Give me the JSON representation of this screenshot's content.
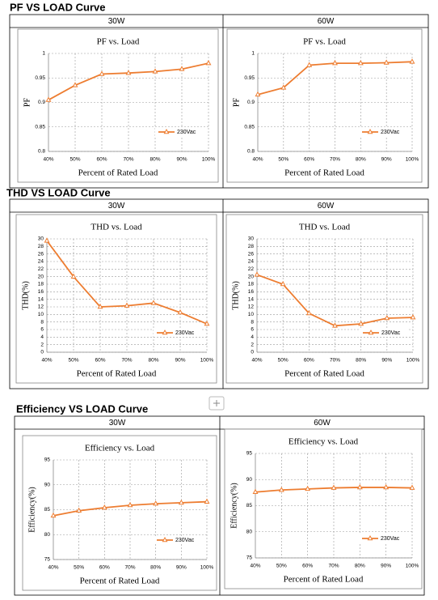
{
  "sections": [
    {
      "heading": "PF VS LOAD Curve",
      "columns": [
        "30W",
        "60W"
      ]
    },
    {
      "heading": "THD VS LOAD Curve",
      "columns": [
        "30W",
        "60W"
      ]
    },
    {
      "heading": "Efficiency VS LOAD Curve",
      "columns": [
        "30W",
        "60W"
      ]
    }
  ],
  "chart_data": [
    {
      "type": "line",
      "title": "PF vs. Load",
      "x_label": "Percent of Rated Load",
      "y_label": "PF",
      "categories": [
        "40%",
        "50%",
        "60%",
        "70%",
        "80%",
        "90%",
        "100%"
      ],
      "series": [
        {
          "name": "230Vac",
          "color": "#ed7d31",
          "values": [
            0.905,
            0.935,
            0.958,
            0.96,
            0.963,
            0.968,
            0.98
          ]
        }
      ],
      "ylim": [
        0.8,
        1
      ],
      "yticks": [
        0.8,
        0.85,
        0.9,
        0.95,
        1
      ],
      "grid": true,
      "legend": "right"
    },
    {
      "type": "line",
      "title": "PF vs. Load",
      "x_label": "Percent of Rated Load",
      "y_label": "PF",
      "categories": [
        "40%",
        "50%",
        "60%",
        "70%",
        "80%",
        "90%",
        "100%"
      ],
      "series": [
        {
          "name": "230Vac",
          "color": "#ed7d31",
          "values": [
            0.916,
            0.93,
            0.976,
            0.98,
            0.98,
            0.981,
            0.983
          ]
        }
      ],
      "ylim": [
        0.8,
        1
      ],
      "yticks": [
        0.8,
        0.85,
        0.9,
        0.95,
        1
      ],
      "grid": true,
      "legend": "right"
    },
    {
      "type": "line",
      "title": "THD vs. Load",
      "x_label": "Percent of Rated Load",
      "y_label": "THD(%)",
      "categories": [
        "40%",
        "50%",
        "60%",
        "70%",
        "80%",
        "90%",
        "100%"
      ],
      "series": [
        {
          "name": "230Vac",
          "color": "#ed7d31",
          "values": [
            29.5,
            20,
            12,
            12.3,
            13,
            10.5,
            7.5
          ]
        }
      ],
      "ylim": [
        0,
        30
      ],
      "yticks": [
        0,
        2,
        4,
        6,
        8,
        10,
        12,
        14,
        16,
        18,
        20,
        22,
        24,
        26,
        28,
        30
      ],
      "grid": true,
      "legend": "right"
    },
    {
      "type": "line",
      "title": "THD vs. Load",
      "x_label": "Percent of Rated Load",
      "y_label": "THD(%)",
      "categories": [
        "40%",
        "50%",
        "60%",
        "70%",
        "80%",
        "90%",
        "100%"
      ],
      "series": [
        {
          "name": "230Vac",
          "color": "#ed7d31",
          "values": [
            20.5,
            18,
            10.3,
            7,
            7.5,
            9,
            9.2
          ]
        }
      ],
      "ylim": [
        0,
        30
      ],
      "yticks": [
        0,
        2,
        4,
        6,
        8,
        10,
        12,
        14,
        16,
        18,
        20,
        22,
        24,
        26,
        28,
        30
      ],
      "grid": true,
      "legend": "right"
    },
    {
      "type": "line",
      "title": "Efficiency vs. Load",
      "x_label": "Percent of Rated Load",
      "y_label": "Efficiency(%)",
      "categories": [
        "40%",
        "50%",
        "60%",
        "70%",
        "80%",
        "90%",
        "100%"
      ],
      "series": [
        {
          "name": "230Vac",
          "color": "#ed7d31",
          "values": [
            83.8,
            84.8,
            85.4,
            85.9,
            86.2,
            86.4,
            86.6
          ]
        }
      ],
      "ylim": [
        75,
        95
      ],
      "yticks": [
        75,
        80,
        85,
        90,
        95
      ],
      "grid": true,
      "legend": "right"
    },
    {
      "type": "line",
      "title": "Efficiency vs. Load",
      "x_label": "Percent of Rated Load",
      "y_label": "Efficiency(%)",
      "categories": [
        "40%",
        "50%",
        "60%",
        "70%",
        "80%",
        "90%",
        "100%"
      ],
      "series": [
        {
          "name": "230Vac",
          "color": "#ed7d31",
          "values": [
            87.6,
            88.0,
            88.2,
            88.4,
            88.5,
            88.5,
            88.4
          ]
        }
      ],
      "ylim": [
        75,
        95
      ],
      "yticks": [
        75,
        80,
        85,
        90,
        95
      ],
      "grid": true,
      "legend": "right"
    }
  ]
}
